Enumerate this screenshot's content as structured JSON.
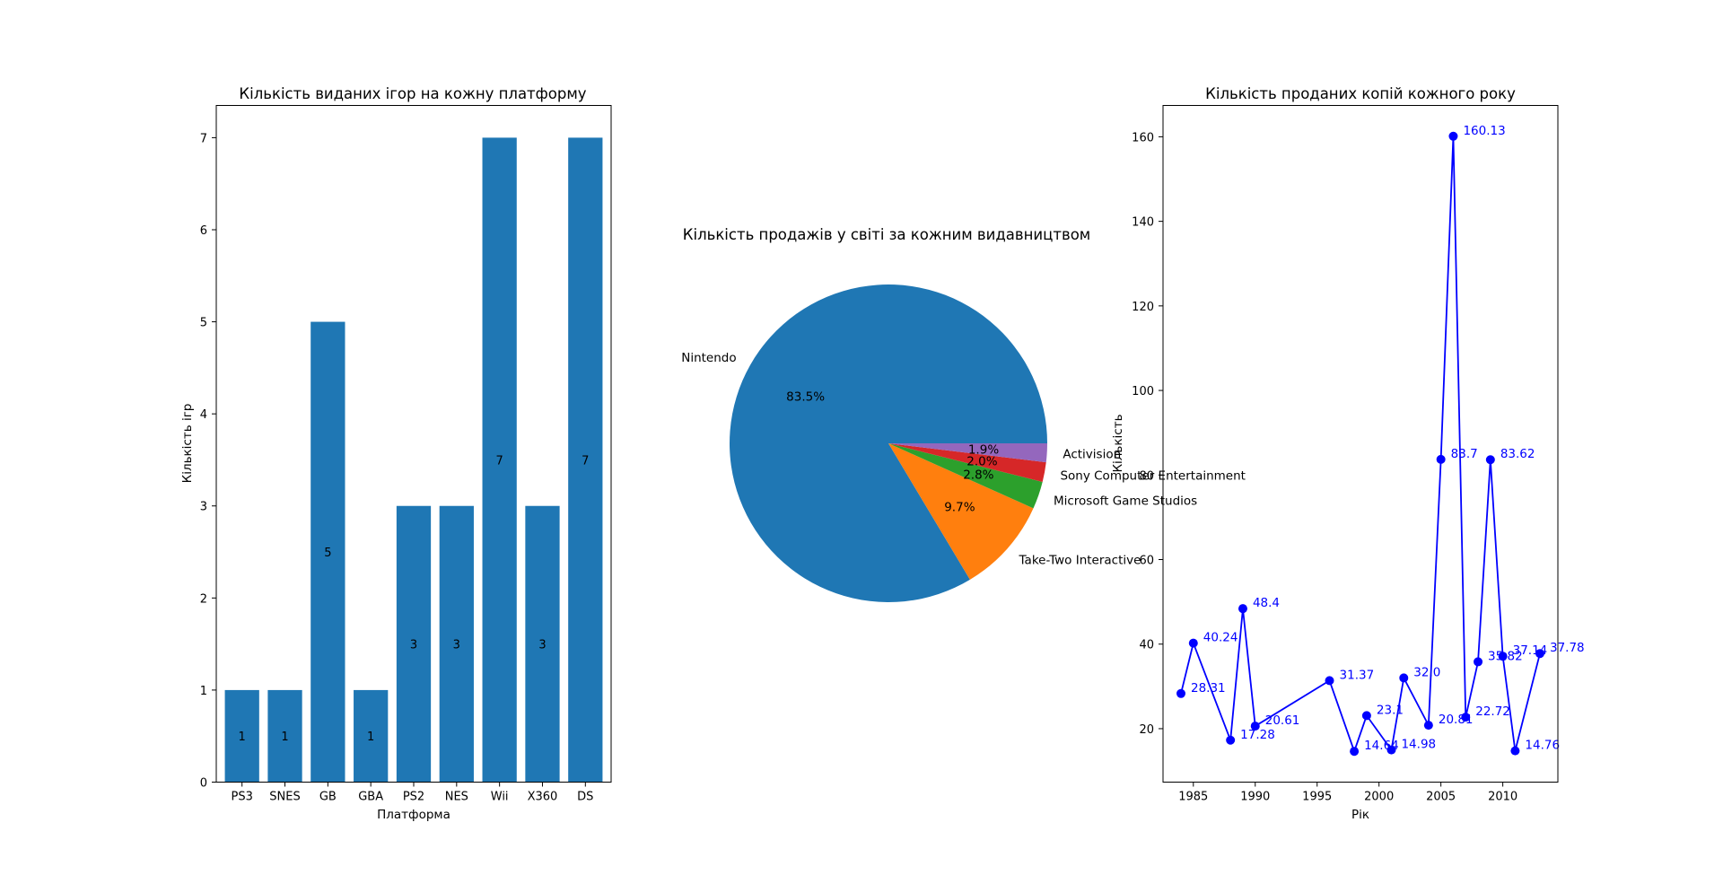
{
  "chart_data": [
    {
      "type": "bar",
      "title": "Кількість виданих ігор на кожну платформу",
      "xlabel": "Платформа",
      "ylabel": "Кількість ігр",
      "categories": [
        "PS3",
        "SNES",
        "GB",
        "GBA",
        "PS2",
        "NES",
        "Wii",
        "X360",
        "DS"
      ],
      "values": [
        1,
        1,
        5,
        1,
        3,
        3,
        7,
        3,
        7
      ],
      "value_labels": [
        "1",
        "1",
        "5",
        "1",
        "3",
        "3",
        "7",
        "3",
        "7"
      ],
      "ylim": [
        0,
        7.35
      ],
      "yticks": [
        0,
        1,
        2,
        3,
        4,
        5,
        6,
        7
      ],
      "color": "#1f77b4"
    },
    {
      "type": "pie",
      "title": "Кількість продажів у світі за кожним видавництвом",
      "labels": [
        "Nintendo",
        "Take-Two Interactive",
        "Microsoft Game Studios",
        "Sony Computer Entertainment",
        "Activision"
      ],
      "values": [
        83.5,
        9.7,
        2.8,
        2.0,
        1.9
      ],
      "pct_labels": [
        "83.5%",
        "9.7%",
        "2.8%",
        "2.0%",
        "1.9%"
      ],
      "colors": [
        "#1f77b4",
        "#ff7f0e",
        "#2ca02c",
        "#d62728",
        "#9467bd"
      ]
    },
    {
      "type": "line",
      "title": "Кількість проданих копій кожного року",
      "xlabel": "Рік",
      "ylabel": "Кількість",
      "x": [
        1984,
        1985,
        1988,
        1989,
        1990,
        1996,
        1998,
        1999,
        2001,
        2002,
        2004,
        2005,
        2006,
        2007,
        2008,
        2009,
        2010,
        2011,
        2013
      ],
      "y": [
        28.31,
        40.24,
        17.28,
        48.4,
        20.61,
        31.37,
        14.64,
        23.1,
        14.98,
        32.0,
        20.81,
        83.7,
        160.13,
        22.72,
        35.82,
        83.62,
        37.14,
        14.76,
        37.78
      ],
      "point_labels": [
        "28.31",
        "40.24",
        "17.28",
        "48.4",
        "20.61",
        "31.37",
        "14.64",
        "23.1",
        "14.98",
        "32.0",
        "20.81",
        "83.7",
        "160.13",
        "22.72",
        "35.82",
        "83.62",
        "37.14",
        "14.76",
        "37.78"
      ],
      "xlim": [
        1982.55,
        2014.45
      ],
      "ylim": [
        7.36,
        167.41
      ],
      "xticks": [
        1985,
        1990,
        1995,
        2000,
        2005,
        2010
      ],
      "yticks": [
        20,
        40,
        60,
        80,
        100,
        120,
        140,
        160
      ],
      "color": "#0000ff"
    }
  ]
}
